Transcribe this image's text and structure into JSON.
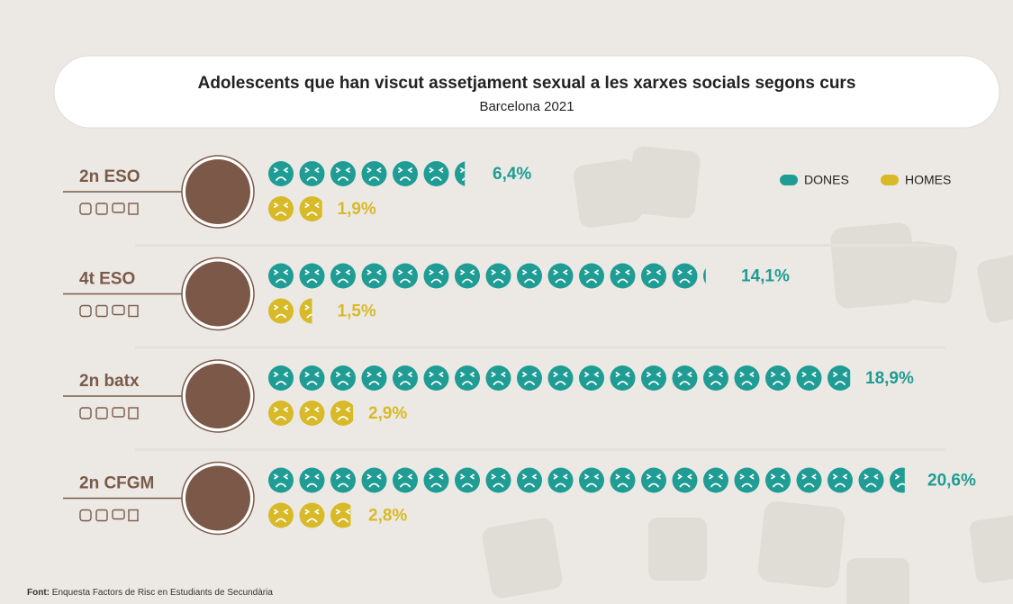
{
  "chart_data": {
    "type": "pictogram",
    "title": "Adolescents que han viscut assetjament sexual a les xarxes socials segons curs",
    "subtitle": "Barcelona 2021",
    "categories": [
      "2n ESO",
      "4t ESO",
      "2n batx",
      "2n CFGM"
    ],
    "series": [
      {
        "name": "DONES",
        "color": "#1f9c94",
        "values": [
          6.4,
          14.1,
          18.9,
          20.6
        ],
        "value_labels": [
          "6,4%",
          "14,1%",
          "18,9%",
          "20,6%"
        ]
      },
      {
        "name": "HOMES",
        "color": "#d8b928",
        "values": [
          1.9,
          1.5,
          2.9,
          2.8
        ],
        "value_labels": [
          "1,9%",
          "1,5%",
          "2,9%",
          "2,8%"
        ]
      }
    ],
    "legend": "top-right",
    "source_label": "Font:",
    "source": "Enquesta Factors de Risc en Estudiants de Secundària"
  }
}
